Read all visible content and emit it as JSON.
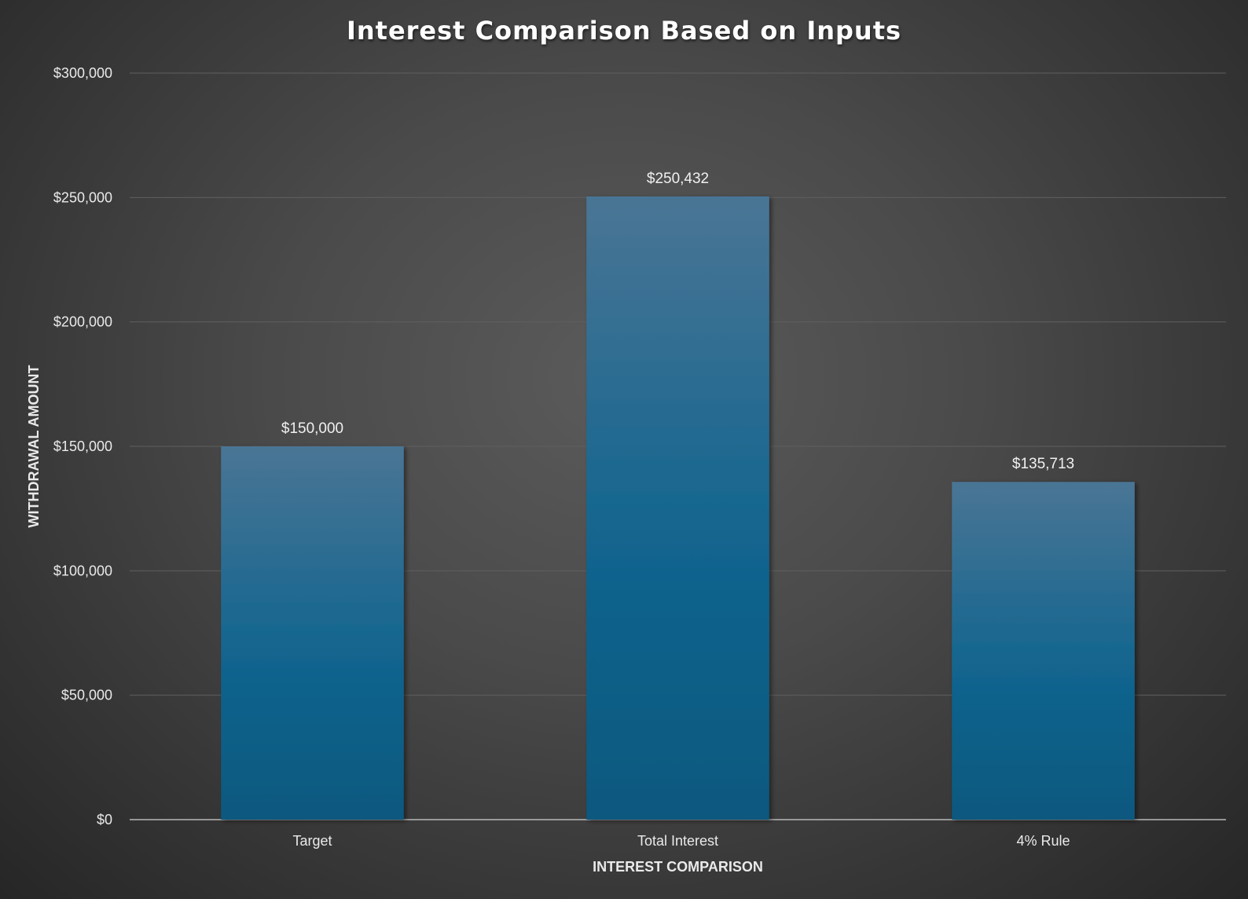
{
  "chart_data": {
    "type": "bar",
    "title": "Interest Comparison Based on Inputs",
    "xlabel": "INTEREST COMPARISON",
    "ylabel": "WITHDRAWAL AMOUNT",
    "categories": [
      "Target",
      "Total Interest",
      "4% Rule"
    ],
    "values": [
      150000,
      250432,
      135713
    ],
    "value_labels": [
      "$150,000",
      "$250,432",
      "$135,713"
    ],
    "ylim": [
      0,
      300000
    ],
    "yticks": [
      0,
      50000,
      100000,
      150000,
      200000,
      250000,
      300000
    ],
    "ytick_labels": [
      "$0",
      "$50,000",
      "$100,000",
      "$150,000",
      "$200,000",
      "$250,000",
      "$300,000"
    ],
    "grid": true,
    "legend": "none",
    "colors": {
      "bar_top": "#4a7595",
      "bar_bottom": "#0a587f",
      "background_center": "#5b5b5b",
      "background_edge": "#262626",
      "gridline": "#5f5f5f",
      "axis_line": "#b8b8b8"
    }
  }
}
